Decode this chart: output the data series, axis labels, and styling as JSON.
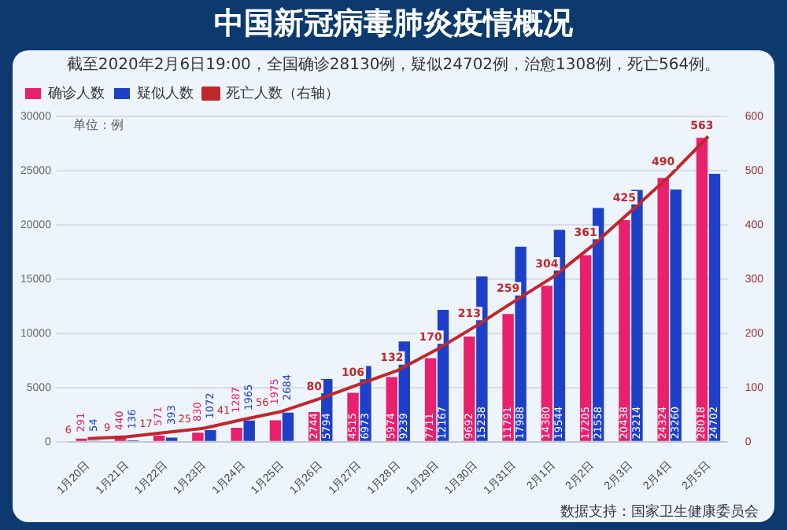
{
  "chart_data": {
    "type": "bar",
    "title": "中国新冠病毒肺炎疫情概况",
    "subtitle": "截至2020年2月6日19:00，全国确诊28130例，疑似24702例，治愈1308例，死亡564例。",
    "ylabel": "单位：例",
    "categories": [
      "1月20日",
      "1月21日",
      "1月22日",
      "1月23日",
      "1月24日",
      "1月25日",
      "1月26日",
      "1月27日",
      "1月28日",
      "1月29日",
      "1月30日",
      "1月31日",
      "2月1日",
      "2月2日",
      "2月3日",
      "2月4日",
      "2月5日"
    ],
    "series": [
      {
        "name": "确诊人数",
        "color": "#e8206e",
        "values": [
          291,
          440,
          571,
          830,
          1287,
          1975,
          2744,
          4515,
          5974,
          7711,
          9692,
          11791,
          14380,
          17205,
          20438,
          24324,
          28018
        ]
      },
      {
        "name": "疑似人数",
        "color": "#1e40c8",
        "values": [
          54,
          136,
          393,
          1072,
          1965,
          2684,
          5794,
          6973,
          9239,
          12167,
          15238,
          17988,
          19544,
          21558,
          23214,
          23260,
          24702
        ]
      },
      {
        "name": "死亡人数（右轴）",
        "type": "line",
        "axis": "y2",
        "color": "#c0272d",
        "values": [
          6,
          9,
          17,
          25,
          41,
          56,
          80,
          106,
          132,
          170,
          213,
          259,
          304,
          361,
          425,
          490,
          563
        ]
      }
    ],
    "ylim": [
      0,
      30000
    ],
    "yticks": [
      0,
      5000,
      10000,
      15000,
      20000,
      25000,
      30000
    ],
    "y2lim": [
      0,
      600
    ],
    "y2ticks": [
      0,
      100,
      200,
      300,
      400,
      500,
      600
    ],
    "grid": "y",
    "legend": "top left",
    "marker": "none",
    "line_style": "solid",
    "data_labels": true,
    "annotations": [
      "数据支持：国家卫生健康委员会"
    ]
  }
}
